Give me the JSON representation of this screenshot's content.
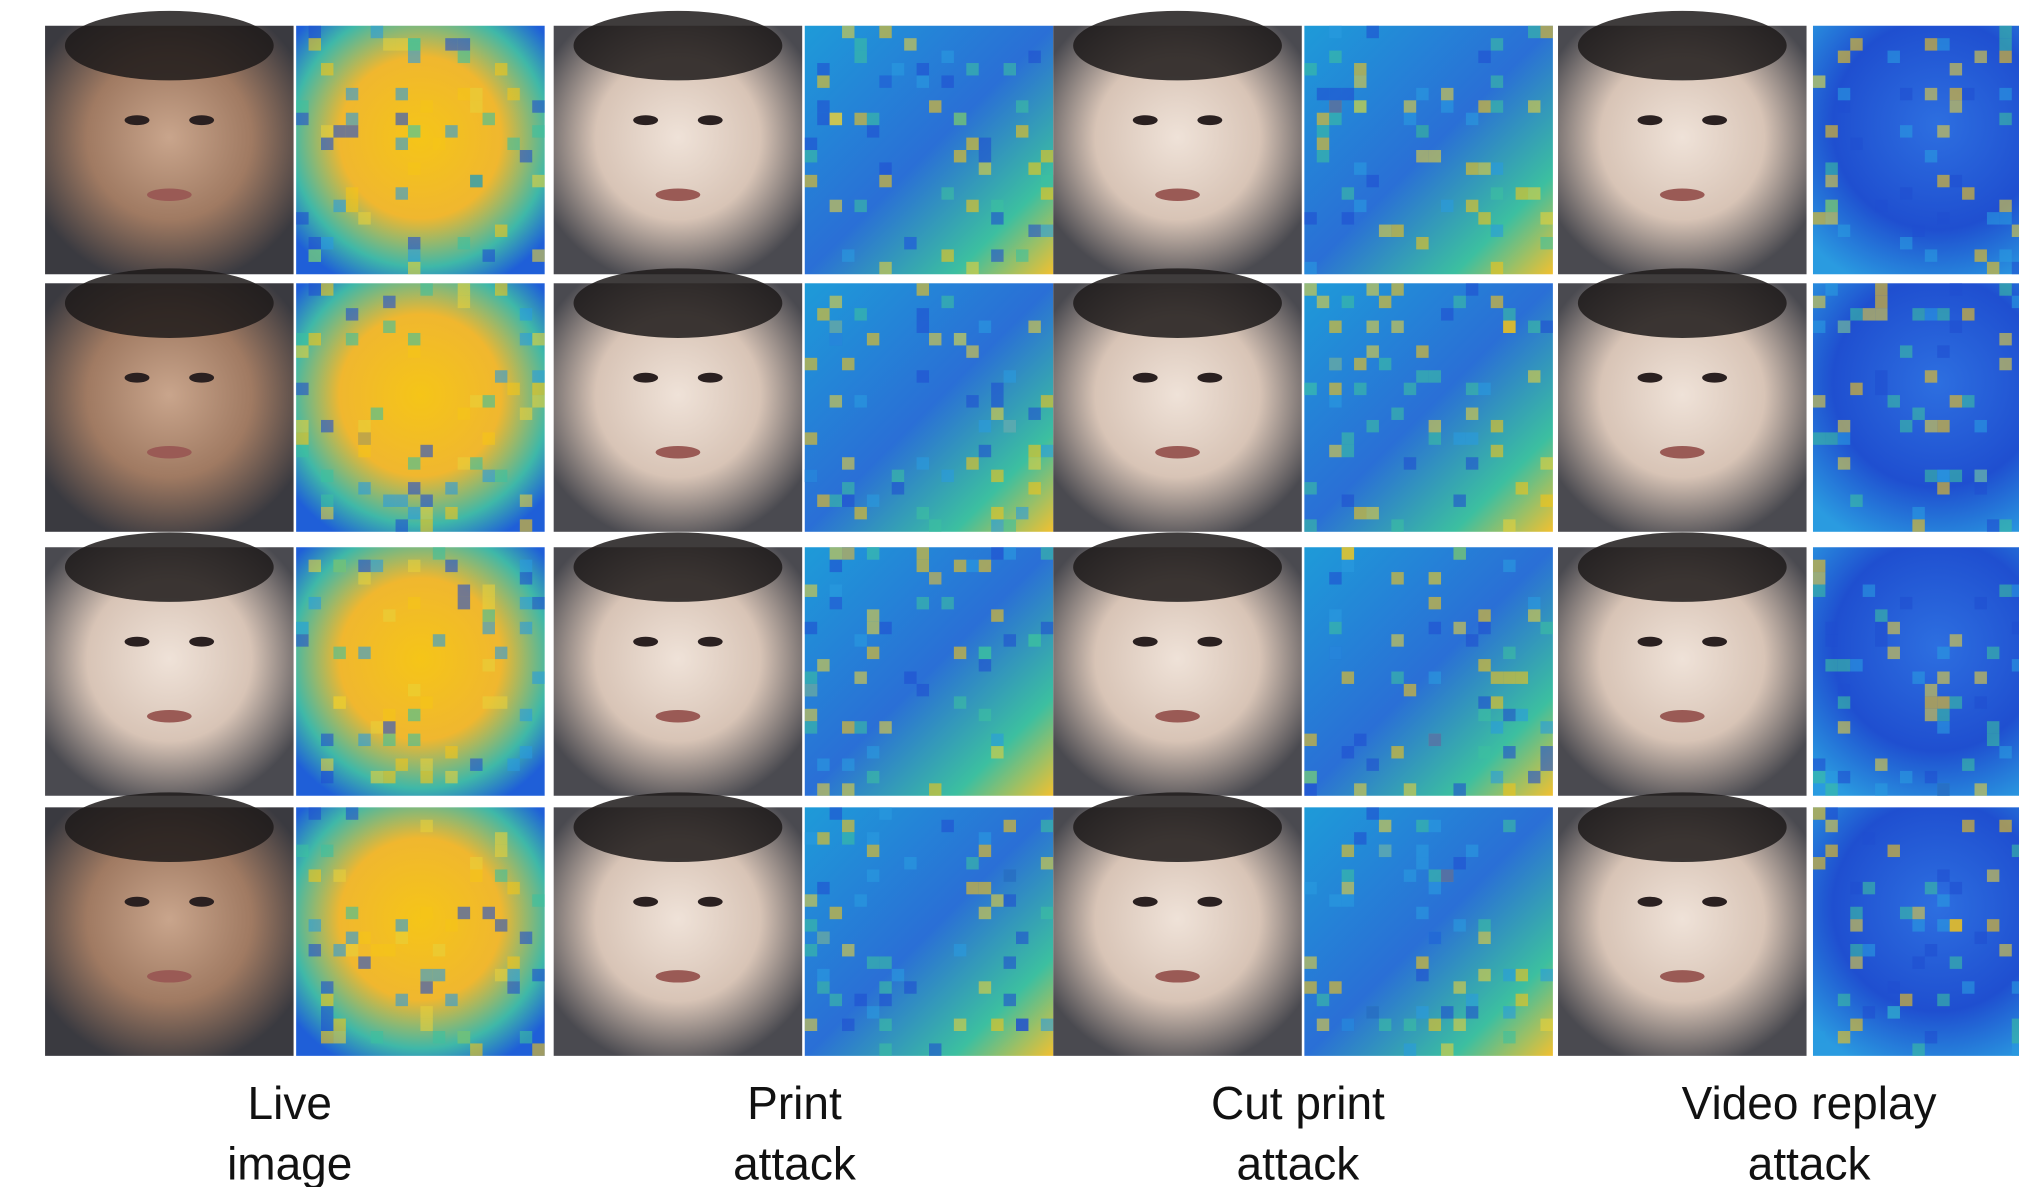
{
  "columns": [
    {
      "lines": [
        "Live",
        "image"
      ]
    },
    {
      "lines": [
        "Print",
        "attack"
      ]
    },
    {
      "lines": [
        "Cut print",
        "attack"
      ]
    },
    {
      "lines": [
        "Video replay",
        "attack"
      ]
    }
  ]
}
